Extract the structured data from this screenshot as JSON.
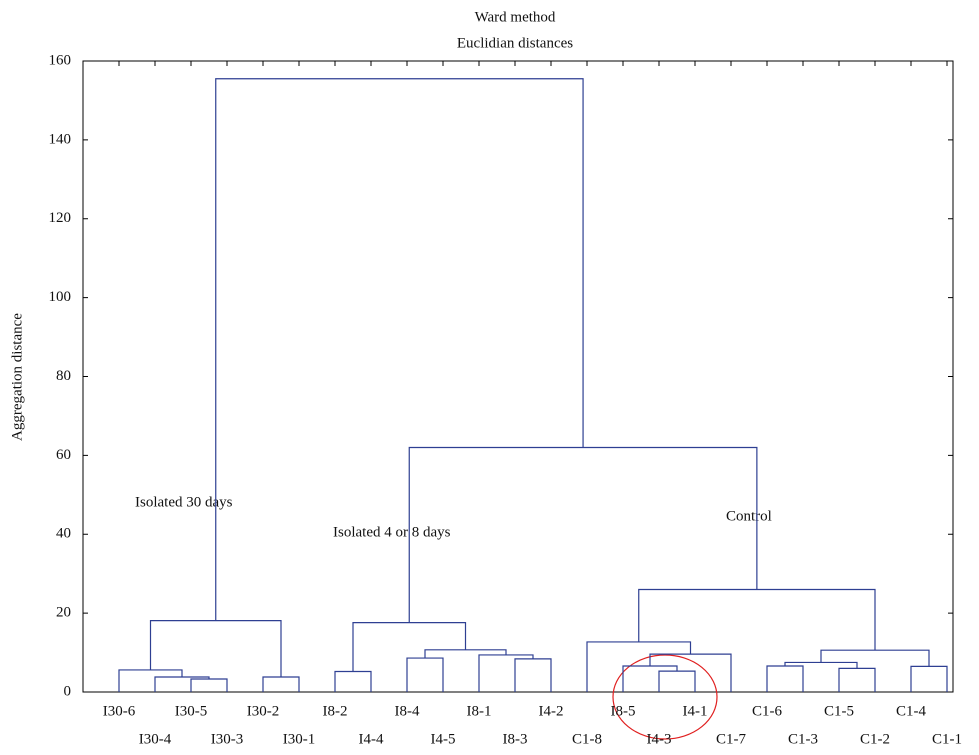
{
  "chart_data": {
    "type": "dendrogram",
    "title": "Ward method",
    "subtitle": "Euclidian distances",
    "ylabel": "Aggregation distance",
    "ylim": [
      0,
      160
    ],
    "yticks": [
      0,
      20,
      40,
      60,
      80,
      100,
      120,
      140,
      160
    ],
    "color": "#2e3f92",
    "leaves": [
      "I30-6",
      "I30-4",
      "I30-5",
      "I30-3",
      "I30-2",
      "I30-1",
      "I8-2",
      "I4-4",
      "I8-4",
      "I4-5",
      "I8-1",
      "I8-3",
      "I4-2",
      "C1-8",
      "I8-5",
      "I4-3",
      "I4-1",
      "C1-7",
      "C1-6",
      "C1-3",
      "C1-5",
      "C1-2",
      "C1-4",
      "C1-1"
    ],
    "merges": [
      {
        "children": [
          2,
          3
        ],
        "height": 3.3
      },
      {
        "children": [
          1,
          24
        ],
        "height": 3.8
      },
      {
        "children": [
          0,
          25
        ],
        "height": 5.6
      },
      {
        "children": [
          4,
          5
        ],
        "height": 3.8
      },
      {
        "children": [
          26,
          27
        ],
        "height": 18.1
      },
      {
        "children": [
          6,
          7
        ],
        "height": 5.2
      },
      {
        "children": [
          8,
          9
        ],
        "height": 8.6
      },
      {
        "children": [
          11,
          12
        ],
        "height": 8.4
      },
      {
        "children": [
          10,
          31
        ],
        "height": 9.4
      },
      {
        "children": [
          30,
          32
        ],
        "height": 10.7
      },
      {
        "children": [
          29,
          33
        ],
        "height": 17.6
      },
      {
        "children": [
          15,
          16
        ],
        "height": 5.3
      },
      {
        "children": [
          14,
          35
        ],
        "height": 6.6
      },
      {
        "children": [
          36,
          17
        ],
        "height": 9.6
      },
      {
        "children": [
          13,
          37
        ],
        "height": 12.7
      },
      {
        "children": [
          18,
          19
        ],
        "height": 6.6
      },
      {
        "children": [
          20,
          21
        ],
        "height": 6.0
      },
      {
        "children": [
          39,
          40
        ],
        "height": 7.5
      },
      {
        "children": [
          22,
          23
        ],
        "height": 6.5
      },
      {
        "children": [
          41,
          42
        ],
        "height": 10.6
      },
      {
        "children": [
          38,
          43
        ],
        "height": 26
      },
      {
        "children": [
          34,
          44
        ],
        "height": 62
      },
      {
        "children": [
          28,
          45
        ],
        "height": 155.5
      }
    ],
    "annotations": [
      "Isolated 30 days",
      "Isolated 4 or 8 days",
      "Control"
    ]
  }
}
